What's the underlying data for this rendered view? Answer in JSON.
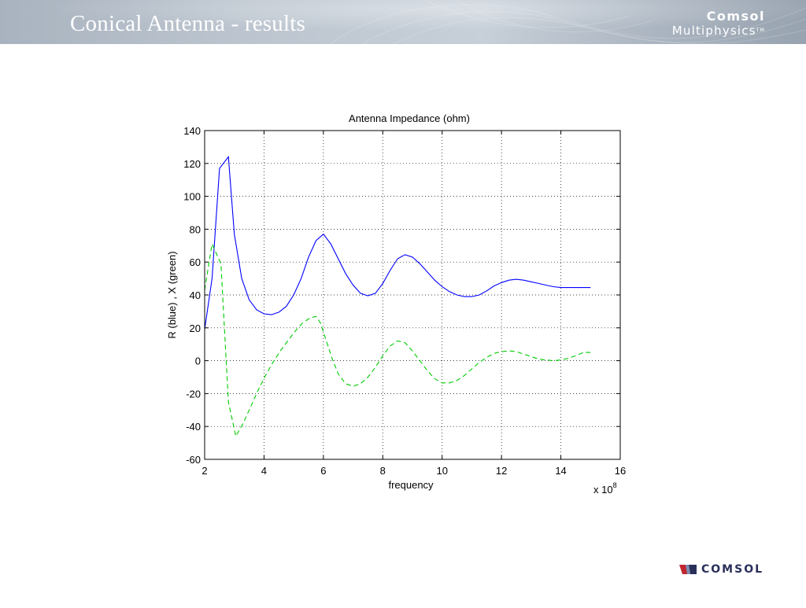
{
  "slide": {
    "title": "Conical Antenna - results",
    "brand_line1": "Comsol",
    "brand_line2": "Multiphysics",
    "brand_tm": "TM",
    "footer_brand": "COMSOL"
  },
  "colors": {
    "header_bg": "#b8c1cc",
    "series_r": "#0000ff",
    "series_x": "#00cc00",
    "footer_text": "#2a2f5a",
    "footer_mark_red": "#c0262f",
    "footer_mark_navy": "#2a2f5a"
  },
  "chart_data": {
    "type": "line",
    "title": "Antenna Impedance (ohm)",
    "xlabel": "frequency",
    "ylabel": "R (blue) , X (green)",
    "x_multiplier_base": "x 10",
    "x_multiplier_exp": "8",
    "xlim": [
      2,
      16
    ],
    "ylim": [
      -60,
      140
    ],
    "xticks": [
      "2",
      "4",
      "6",
      "8",
      "10",
      "12",
      "14",
      "16"
    ],
    "yticks": [
      "140",
      "120",
      "100",
      "80",
      "60",
      "40",
      "20",
      "0",
      "-20",
      "-40",
      "-60"
    ],
    "grid": true,
    "series": [
      {
        "color": "#0000ff",
        "style": "solid",
        "x": [
          2,
          2.25,
          2.5,
          2.8,
          3.0,
          3.25,
          3.5,
          3.75,
          4.0,
          4.25,
          4.5,
          4.75,
          5.0,
          5.25,
          5.5,
          5.75,
          6.0,
          6.25,
          6.5,
          6.75,
          7.0,
          7.25,
          7.5,
          7.75,
          8.0,
          8.25,
          8.5,
          8.75,
          9.0,
          9.25,
          9.5,
          9.75,
          10.0,
          10.25,
          10.5,
          10.75,
          11.0,
          11.25,
          11.5,
          11.75,
          12.0,
          12.25,
          12.5,
          12.75,
          13.0,
          13.25,
          13.5,
          13.75,
          14.0,
          14.25,
          14.5,
          14.75,
          15.0
        ],
        "values": [
          19,
          50,
          117,
          124,
          77,
          50,
          37,
          31,
          28.5,
          28,
          29.5,
          33,
          40,
          50,
          63,
          73,
          77,
          71,
          62,
          53,
          46,
          41,
          39.5,
          41,
          47,
          55,
          62,
          64.5,
          63,
          59,
          54,
          49,
          45,
          42,
          40,
          39,
          39,
          40,
          42.5,
          45.5,
          47.5,
          49,
          49.5,
          49,
          48,
          47,
          46,
          45,
          44.5,
          44.5,
          44.5,
          44.5,
          44.5
        ]
      },
      {
        "color": "#00cc00",
        "style": "dashed",
        "x": [
          2,
          2.25,
          2.55,
          2.8,
          3.05,
          3.3,
          3.55,
          3.8,
          4.05,
          4.3,
          4.55,
          4.8,
          5.05,
          5.3,
          5.55,
          5.75,
          5.9,
          6.1,
          6.3,
          6.5,
          6.75,
          7.0,
          7.25,
          7.5,
          7.75,
          8.0,
          8.25,
          8.5,
          8.75,
          9.0,
          9.25,
          9.5,
          9.75,
          10.0,
          10.25,
          10.5,
          10.75,
          11.0,
          11.25,
          11.5,
          11.75,
          12.0,
          12.25,
          12.5,
          12.75,
          13.0,
          13.25,
          13.5,
          13.75,
          14.0,
          14.25,
          14.5,
          14.75,
          15.0
        ],
        "values": [
          43,
          71,
          59,
          -25,
          -46,
          -38,
          -28,
          -18,
          -9,
          -1,
          6,
          12,
          18,
          23,
          26,
          27,
          23,
          12,
          1,
          -8,
          -14,
          -15.5,
          -14,
          -10,
          -4,
          3,
          9,
          12,
          11,
          6,
          0,
          -6,
          -11,
          -13.5,
          -13.5,
          -12,
          -9,
          -5,
          -1,
          2,
          4.5,
          5.5,
          6,
          5.5,
          4,
          2.5,
          1,
          0.5,
          0,
          0.5,
          1.5,
          3,
          5,
          5
        ]
      }
    ]
  }
}
